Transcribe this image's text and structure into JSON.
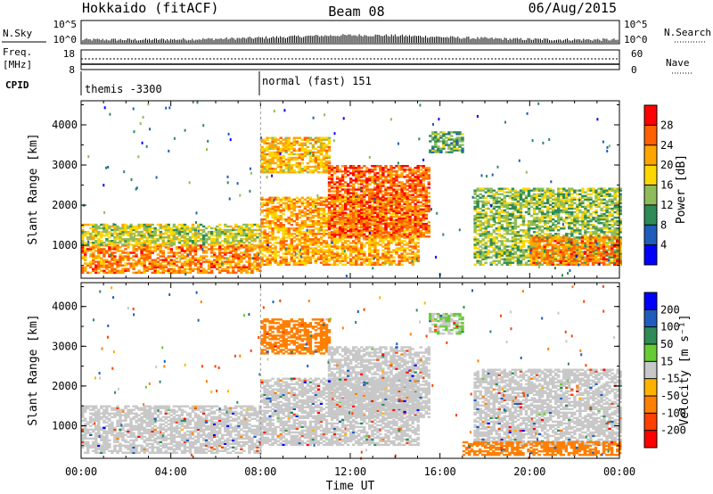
{
  "header": {
    "station": "Hokkaido (fitACF)",
    "beam": "Beam 08",
    "date": "06/Aug/2015"
  },
  "panels": {
    "nsky": {
      "label": "N.Sky",
      "top_tick": "10^5",
      "bottom_tick": "10^0"
    },
    "nsearch": {
      "label": "N.Search",
      "top_tick": "10^5",
      "bottom_tick": "10^0"
    },
    "freq": {
      "label_line1": "Freq.",
      "label_line2": "[MHz]",
      "ticks": [
        "18",
        "8"
      ]
    },
    "nave": {
      "label": "Nave",
      "ticks": [
        "60",
        "0"
      ]
    },
    "cpid": {
      "label": "CPID",
      "segments": [
        {
          "start": "00:00",
          "text": "themis -3300"
        },
        {
          "start": "08:00",
          "text": "normal (fast) 151"
        }
      ]
    }
  },
  "chart_data": [
    {
      "type": "heatmap",
      "title": "",
      "xlabel": "Time UT",
      "ylabel": "Slant Range [km]",
      "x_ticks": [
        "00:00",
        "04:00",
        "08:00",
        "12:00",
        "16:00",
        "20:00",
        "00:00"
      ],
      "xlim_hours": [
        0,
        24
      ],
      "y_ticks": [
        1000,
        2000,
        3000,
        4000
      ],
      "ylim": [
        180,
        4600
      ],
      "colorbar": {
        "label": "Power [dB]",
        "ticks": [
          4,
          8,
          12,
          16,
          20,
          24,
          28
        ],
        "range": [
          0,
          32
        ],
        "colors": [
          "#0000ff",
          "#1f5dbd",
          "#2e8b57",
          "#8fbc5a",
          "#ffd700",
          "#ffa500",
          "#ff6000",
          "#ff0000"
        ]
      },
      "echo_regions": [
        {
          "name": "near-range band",
          "t0": 0.0,
          "t1": 8.0,
          "r0": 300,
          "r1": 1000,
          "dB": 24
        },
        {
          "name": "near-range upper",
          "t0": 0.0,
          "t1": 8.0,
          "r0": 1000,
          "r1": 1500,
          "dB": 16
        },
        {
          "name": "morning wedge",
          "t0": 8.0,
          "t1": 15.0,
          "r0": 500,
          "r1": 2200,
          "dB": 22
        },
        {
          "name": "far echo 1",
          "t0": 8.0,
          "t1": 11.0,
          "r0": 2800,
          "r1": 3700,
          "dB": 20
        },
        {
          "name": "oblique streaks",
          "t0": 11.0,
          "t1": 15.5,
          "r0": 1200,
          "r1": 3000,
          "dB": 26
        },
        {
          "name": "afternoon cusp",
          "t0": 15.5,
          "t1": 17.0,
          "r0": 3300,
          "r1": 3800,
          "dB": 12
        },
        {
          "name": "evening arc",
          "t0": 17.5,
          "t1": 24.0,
          "r0": 500,
          "r1": 2400,
          "dB": 14
        },
        {
          "name": "ground scatter",
          "t0": 20.0,
          "t1": 24.0,
          "r0": 500,
          "r1": 1200,
          "dB": 24
        }
      ]
    },
    {
      "type": "heatmap",
      "title": "",
      "xlabel": "Time UT",
      "ylabel": "Slant Range [km]",
      "x_ticks": [
        "00:00",
        "04:00",
        "08:00",
        "12:00",
        "16:00",
        "20:00",
        "00:00"
      ],
      "xlim_hours": [
        0,
        24
      ],
      "y_ticks": [
        1000,
        2000,
        3000,
        4000
      ],
      "ylim": [
        180,
        4600
      ],
      "colorbar": {
        "label": "Velocity [m s⁻¹]",
        "ticks": [
          200,
          100,
          50,
          15,
          -15,
          -50,
          -100,
          -200
        ],
        "colors": [
          "#0000ff",
          "#1f5dbd",
          "#2e8b57",
          "#66cc33",
          "#c8c8c8",
          "#ffb300",
          "#ff7f00",
          "#ff4000",
          "#ff0000"
        ]
      },
      "echo_regions": [
        {
          "name": "ground scatter band",
          "t0": 0.0,
          "t1": 8.0,
          "r0": 300,
          "r1": 1500,
          "vel": 0
        },
        {
          "name": "morning wedge",
          "t0": 8.0,
          "t1": 15.0,
          "r0": 500,
          "r1": 2200,
          "vel": 0
        },
        {
          "name": "far echo 1",
          "t0": 8.0,
          "t1": 11.0,
          "r0": 2800,
          "r1": 3700,
          "vel": -50
        },
        {
          "name": "oblique streaks",
          "t0": 11.0,
          "t1": 15.5,
          "r0": 1200,
          "r1": 3000,
          "vel": 0
        },
        {
          "name": "afternoon cusp",
          "t0": 15.5,
          "t1": 17.0,
          "r0": 3300,
          "r1": 3800,
          "vel": 15
        },
        {
          "name": "evening arc",
          "t0": 17.5,
          "t1": 24.0,
          "r0": 500,
          "r1": 2400,
          "vel": 0
        },
        {
          "name": "evening near range",
          "t0": 17.0,
          "t1": 24.0,
          "r0": 250,
          "r1": 600,
          "vel": -50
        }
      ]
    }
  ]
}
